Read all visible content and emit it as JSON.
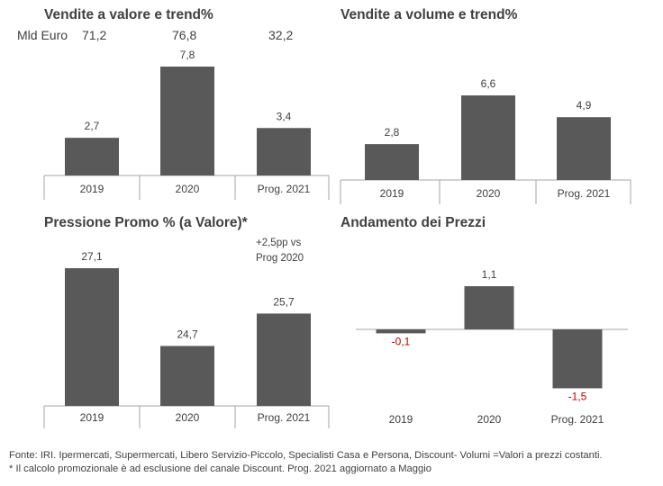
{
  "header": {
    "mld_label": "Mld Euro",
    "mld_values": [
      "71,2",
      "76,8",
      "32,2"
    ]
  },
  "colors": {
    "bar": "#595959",
    "negative_label": "#c00000",
    "axis": "#a6a6a6",
    "text": "#404040"
  },
  "chart_data": [
    {
      "type": "bar",
      "title": "Vendite a valore e trend%",
      "categories": [
        "2019",
        "2020",
        "Prog. 2021"
      ],
      "values": [
        2.7,
        7.8,
        3.4
      ],
      "labels": [
        "2,7",
        "7,8",
        "3,4"
      ],
      "ylim": [
        0,
        7.8
      ]
    },
    {
      "type": "bar",
      "title": "Vendite a volume e trend%",
      "categories": [
        "2019",
        "2020",
        "Prog. 2021"
      ],
      "values": [
        2.8,
        6.6,
        4.9
      ],
      "labels": [
        "2,8",
        "6,6",
        "4,9"
      ],
      "ylim": [
        0,
        6.6
      ]
    },
    {
      "type": "bar",
      "title": "Pressione Promo % (a Valore)*",
      "categories": [
        "2019",
        "2020",
        "Prog. 2021"
      ],
      "values": [
        27.1,
        24.7,
        25.7
      ],
      "labels": [
        "27,1",
        "24,7",
        "25,7"
      ],
      "note": [
        "+2,5pp vs",
        "Prog 2020"
      ]
    },
    {
      "type": "bar",
      "title": "Andamento dei Prezzi",
      "categories": [
        "2019",
        "2020",
        "Prog. 2021"
      ],
      "values": [
        -0.1,
        1.1,
        -1.5
      ],
      "labels": [
        "-0,1",
        "1,1",
        "-1,5"
      ]
    }
  ],
  "footer": {
    "line1": "Fonte: IRI. Ipermercati, Supermercati, Libero Servizio-Piccolo, Specialisti Casa e Persona, Discount- Volumi =Valori a prezzi costanti.",
    "line2": "* Il calcolo promozionale è ad esclusione del canale Discount. Prog. 2021 aggiornato a Maggio"
  }
}
